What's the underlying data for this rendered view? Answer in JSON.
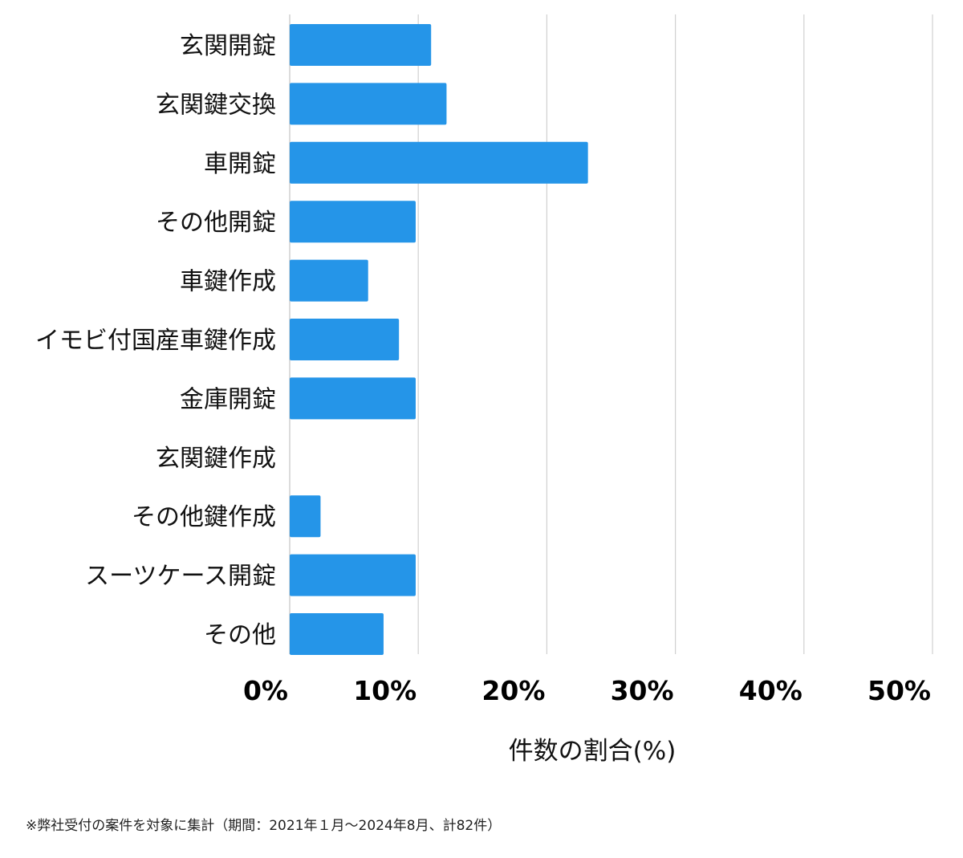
{
  "chart_data": {
    "type": "bar",
    "orientation": "horizontal",
    "categories": [
      "玄関開錠",
      "玄関鍵交換",
      "車開錠",
      "その他開錠",
      "車鍵作成",
      "イモビ付国産車鍵作成",
      "金庫開錠",
      "玄関鍵作成",
      "その他鍵作成",
      "スーツケース開錠",
      "その他"
    ],
    "values": [
      11.0,
      12.2,
      23.2,
      9.8,
      6.1,
      8.5,
      9.8,
      0,
      2.4,
      9.8,
      7.3
    ],
    "xlim": [
      0,
      50
    ],
    "xticks": [
      0,
      10,
      20,
      30,
      40,
      50
    ],
    "xtick_labels": [
      "0%",
      "10%",
      "20%",
      "30%",
      "40%",
      "50%"
    ],
    "xlabel": "件数の割合(%)",
    "ylabel": "",
    "title": "",
    "grid": "vertical",
    "bar_color": "#2595E8",
    "grid_color": "#d0d0d0"
  },
  "footnote": "※弊社受付の案件を対象に集計（期間：2021年１月〜2024年8月、計82件）"
}
